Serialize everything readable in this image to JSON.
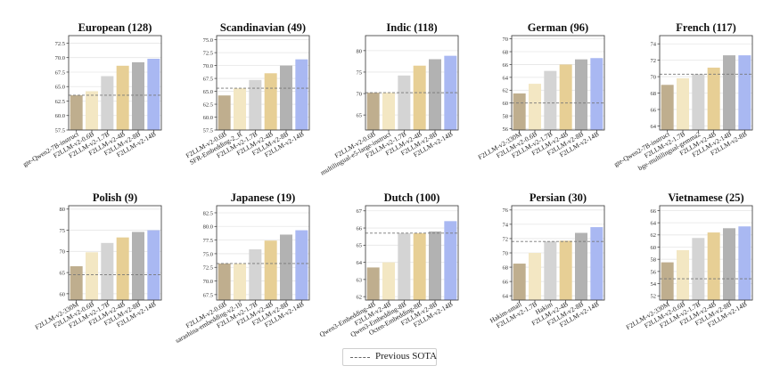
{
  "legend": {
    "label": "Previous SOTA"
  },
  "colors": [
    "#bfae8e",
    "#f3e7c3",
    "#d4d4d4",
    "#e7cf95",
    "#b2b2b2",
    "#a9b8f2"
  ],
  "chart_data": [
    {
      "type": "bar",
      "title": "European (128)",
      "categories": [
        "gte-Qwen2-7B-instruct",
        "F2LLM-v2-0.6B",
        "F2LLM-v2-1.7B",
        "F2LLM-v2-4B",
        "F2LLM-v2-8B",
        "F2LLM-v2-14B"
      ],
      "values": [
        63.5,
        64.2,
        66.8,
        68.6,
        69.2,
        69.8
      ],
      "yticks": [
        57.5,
        60.0,
        62.5,
        65.0,
        67.5,
        70.0,
        72.5
      ],
      "ytick_labels": [
        "57.5",
        "60.0",
        "62.5",
        "65.0",
        "67.5",
        "70.0",
        "72.5"
      ],
      "ylim": [
        57.5,
        73.8
      ],
      "sota": 63.5
    },
    {
      "type": "bar",
      "title": "Scandinavian (49)",
      "categories": [
        "F2LLM-v2-0.6B",
        "SFR-Embedding-2_R",
        "F2LLM-v2-1.7B",
        "F2LLM-v2-4B",
        "F2LLM-v2-8B",
        "F2LLM-v2-14B"
      ],
      "values": [
        64.2,
        65.6,
        67.2,
        68.5,
        70.0,
        71.2
      ],
      "yticks": [
        57.5,
        60.0,
        62.5,
        65.0,
        67.5,
        70.0,
        72.5,
        75.0
      ],
      "ytick_labels": [
        "57.5",
        "60.0",
        "62.5",
        "65.0",
        "67.5",
        "70.0",
        "72.5",
        "75.0"
      ],
      "ylim": [
        57.5,
        75.8
      ],
      "sota": 65.6
    },
    {
      "type": "bar",
      "title": "Indic (118)",
      "categories": [
        "F2LLM-v2-0.6B",
        "multilingual-e5-large-instruct",
        "F2LLM-v2-1.7B",
        "F2LLM-v2-4B",
        "F2LLM-v2-8B",
        "F2LLM-v2-14B"
      ],
      "values": [
        70.2,
        70.2,
        74.2,
        76.5,
        78.0,
        78.8
      ],
      "yticks": [
        65,
        70,
        75,
        80
      ],
      "ytick_labels": [
        "65",
        "70",
        "75",
        "80"
      ],
      "ylim": [
        61.5,
        83.5
      ],
      "sota": 70.2
    },
    {
      "type": "bar",
      "title": "German (96)",
      "categories": [
        "F2LLM-v2-330M",
        "F2LLM-v2-0.6B",
        "F2LLM-v2-1.7B",
        "F2LLM-v2-4B",
        "F2LLM-v2-8B",
        "F2LLM-v2-14B"
      ],
      "values": [
        61.5,
        63.0,
        65.0,
        66.0,
        66.8,
        67.0
      ],
      "yticks": [
        56,
        58,
        60,
        62,
        64,
        66,
        68,
        70
      ],
      "ytick_labels": [
        "56",
        "58",
        "60",
        "62",
        "64",
        "66",
        "68",
        "70"
      ],
      "ylim": [
        55.8,
        70.5
      ],
      "sota": 60.0
    },
    {
      "type": "bar",
      "title": "French (117)",
      "categories": [
        "gte-Qwen2-7B-instruct",
        "F2LLM-v2-1.7B",
        "bge-multilingual-gemma2",
        "F2LLM-v2-4B",
        "F2LLM-v2-14B",
        "F2LLM-v2-8B"
      ],
      "values": [
        69.0,
        69.8,
        70.3,
        71.1,
        72.6,
        72.6
      ],
      "yticks": [
        64,
        66,
        68,
        70,
        72,
        74
      ],
      "ytick_labels": [
        "64",
        "66",
        "68",
        "70",
        "72",
        "74"
      ],
      "ylim": [
        63.5,
        75.0
      ],
      "sota": 70.3
    },
    {
      "type": "bar",
      "title": "Polish (9)",
      "categories": [
        "F2LLM-v2-330M",
        "F2LLM-v2-0.6B",
        "F2LLM-v2-1.7B",
        "F2LLM-v2-4B",
        "F2LLM-v2-8B",
        "F2LLM-v2-14B"
      ],
      "values": [
        66.5,
        69.8,
        72.0,
        73.3,
        74.6,
        75.0
      ],
      "yticks": [
        60,
        65,
        70,
        75,
        80
      ],
      "ytick_labels": [
        "60",
        "65",
        "70",
        "75",
        "80"
      ],
      "ylim": [
        58.5,
        80.8
      ],
      "sota": 64.5
    },
    {
      "type": "bar",
      "title": "Japanese (19)",
      "categories": [
        "F2LLM-v2-0.6B",
        "sarashina-embedding-v2-1b",
        "F2LLM-v2-1.7B",
        "F2LLM-v2-4B",
        "F2LLM-v2-8B",
        "F2LLM-v2-14B"
      ],
      "values": [
        73.2,
        73.2,
        75.8,
        77.4,
        78.5,
        79.3
      ],
      "yticks": [
        67.5,
        70.0,
        72.5,
        75.0,
        77.5,
        80.0,
        82.5
      ],
      "ytick_labels": [
        "67.5",
        "70.0",
        "72.5",
        "75.0",
        "77.5",
        "80.0",
        "82.5"
      ],
      "ylim": [
        66.5,
        83.8
      ],
      "sota": 73.2
    },
    {
      "type": "bar",
      "title": "Dutch (100)",
      "categories": [
        "Qwen3-Embedding-4B",
        "F2LLM-v2-4B",
        "Qwen3-Embedding-8B",
        "Octen-Embedding-8B",
        "F2LLM-v2-8B",
        "F2LLM-v2-14B"
      ],
      "values": [
        63.7,
        64.0,
        65.7,
        65.7,
        65.8,
        66.4
      ],
      "yticks": [
        62,
        63,
        64,
        65,
        66,
        67
      ],
      "ytick_labels": [
        "62",
        "63",
        "64",
        "65",
        "66",
        "67"
      ],
      "ylim": [
        61.8,
        67.3
      ],
      "sota": 65.7
    },
    {
      "type": "bar",
      "title": "Persian (30)",
      "categories": [
        "Hakim-small",
        "F2LLM-v2-1.7B",
        "Hakim",
        "F2LLM-v2-4B",
        "F2LLM-v2-8B",
        "F2LLM-v2-14B"
      ],
      "values": [
        68.5,
        70.0,
        71.6,
        71.7,
        72.8,
        73.6
      ],
      "yticks": [
        64,
        66,
        68,
        70,
        72,
        74,
        76
      ],
      "ytick_labels": [
        "64",
        "66",
        "68",
        "70",
        "72",
        "74",
        "76"
      ],
      "ylim": [
        63.4,
        76.6
      ],
      "sota": 71.6
    },
    {
      "type": "bar",
      "title": "Vietnamese (25)",
      "categories": [
        "F2LLM-v2-330M",
        "F2LLM-v2-0.6B",
        "F2LLM-v2-1.7B",
        "F2LLM-v2-4B",
        "F2LLM-v2-8B",
        "F2LLM-v2-14B"
      ],
      "values": [
        57.5,
        59.5,
        61.5,
        62.4,
        63.1,
        63.4
      ],
      "yticks": [
        52,
        54,
        56,
        58,
        60,
        62,
        64,
        66
      ],
      "ytick_labels": [
        "52",
        "54",
        "56",
        "58",
        "60",
        "62",
        "64",
        "66"
      ],
      "ylim": [
        51.3,
        66.8
      ],
      "sota": 54.8
    }
  ]
}
